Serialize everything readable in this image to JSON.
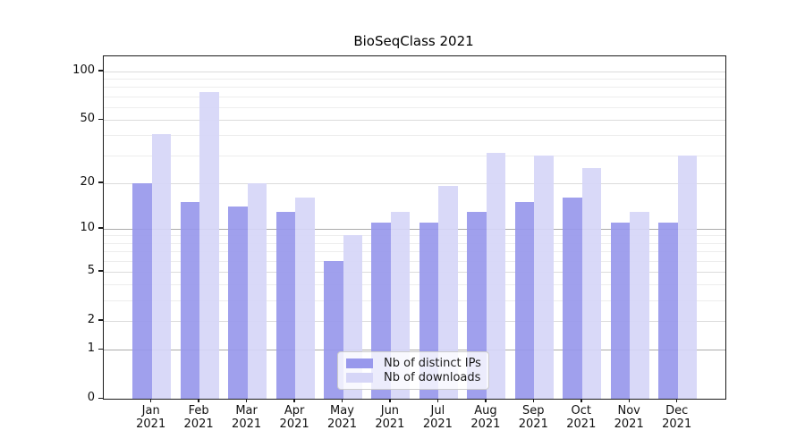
{
  "title": "BioSeqClass 2021",
  "legend": {
    "items": [
      {
        "label": "Nb of distinct IPs",
        "color": "#9898ec"
      },
      {
        "label": "Nb of downloads",
        "color": "#d6d6f7"
      }
    ],
    "position": "lower center"
  },
  "chart_data": {
    "type": "bar",
    "title": "BioSeqClass 2021",
    "xlabel": "",
    "ylabel": "",
    "y_scale": "log1p",
    "ylim": [
      0,
      124
    ],
    "grid": true,
    "legend_position": "lower center",
    "categories": [
      "Jan",
      "Feb",
      "Mar",
      "Apr",
      "May",
      "Jun",
      "Jul",
      "Aug",
      "Sep",
      "Oct",
      "Nov",
      "Dec"
    ],
    "category_year": "2021",
    "series": [
      {
        "name": "Nb of distinct IPs",
        "color": "#9898ec",
        "values": [
          20,
          15,
          14,
          13,
          6,
          11,
          11,
          13,
          15,
          16,
          11,
          11
        ]
      },
      {
        "name": "Nb of downloads",
        "color": "#d6d6f7",
        "values": [
          41,
          75,
          20,
          16,
          9,
          13,
          19,
          31,
          30,
          25,
          13,
          30
        ]
      }
    ],
    "ytick_labels": [
      100,
      50,
      20,
      10,
      5,
      2,
      1,
      0
    ],
    "gridlines": {
      "emphasis": [
        10,
        1
      ],
      "normal": [
        100,
        50,
        20,
        5,
        2
      ],
      "minor": [
        3,
        4,
        6,
        7,
        8,
        9,
        30,
        40,
        60,
        70,
        80,
        90
      ]
    }
  }
}
